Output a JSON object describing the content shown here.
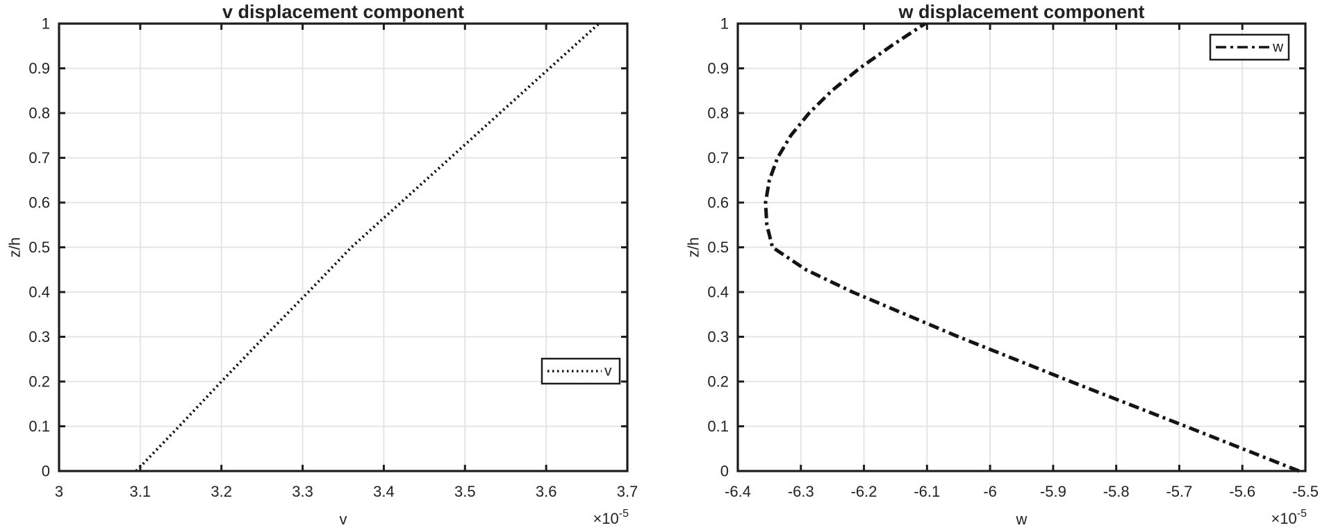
{
  "figure": {
    "background_color": "#ffffff",
    "axis_color": "#1d1d1d",
    "grid_color": "#e2e2e2",
    "curve_color": "#141414",
    "text_color": "#222222"
  },
  "chart_data": [
    {
      "type": "line",
      "title": "v displacement component",
      "xlabel": "v",
      "ylabel": "z/h",
      "exponent": {
        "base": "×10",
        "power": "-5"
      },
      "x_scale_factor": "1e-5",
      "grid": true,
      "legend": {
        "label": "v",
        "line_style": "dotted",
        "location": "inside-lower-right"
      },
      "line_style": "dotted",
      "xlim": [
        3.0,
        3.7
      ],
      "ylim": [
        0,
        1
      ],
      "xtick_labels": [
        "3",
        "3.1",
        "3.2",
        "3.3",
        "3.4",
        "3.5",
        "3.6",
        "3.7"
      ],
      "ytick_labels": [
        "0",
        "0.1",
        "0.2",
        "0.3",
        "0.4",
        "0.5",
        "0.6",
        "0.7",
        "0.8",
        "0.9",
        "1"
      ],
      "series": [
        {
          "name": "v",
          "z": [
            0,
            0.1,
            0.2,
            0.3,
            0.4,
            0.5,
            0.6,
            0.7,
            0.8,
            0.9,
            1.0
          ],
          "x": [
            3.095,
            3.148,
            3.2,
            3.253,
            3.307,
            3.36,
            3.421,
            3.482,
            3.543,
            3.604,
            3.665
          ]
        }
      ]
    },
    {
      "type": "line",
      "title": "w displacement component",
      "xlabel": "w",
      "ylabel": "z/h",
      "exponent": {
        "base": "×10",
        "power": "-5"
      },
      "x_scale_factor": "1e-5",
      "grid": true,
      "legend": {
        "label": "w",
        "line_style": "dash-dot",
        "location": "inside-upper-right"
      },
      "line_style": "dash-dot",
      "xlim": [
        -6.4,
        -5.5
      ],
      "ylim": [
        0,
        1
      ],
      "xtick_labels": [
        "-6.4",
        "-6.3",
        "-6.2",
        "-6.1",
        "-6",
        "-5.9",
        "-5.8",
        "-5.7",
        "-5.6",
        "-5.5"
      ],
      "ytick_labels": [
        "0",
        "0.1",
        "0.2",
        "0.3",
        "0.4",
        "0.5",
        "0.6",
        "0.7",
        "0.8",
        "0.9",
        "1"
      ],
      "series": [
        {
          "name": "w",
          "z": [
            0,
            0.1,
            0.2,
            0.3,
            0.4,
            0.45,
            0.5,
            0.55,
            0.6,
            0.65,
            0.7,
            0.75,
            0.8,
            0.85,
            0.9,
            0.95,
            1.0
          ],
          "x": [
            -5.51,
            -5.69,
            -5.872,
            -6.05,
            -6.218,
            -6.292,
            -6.345,
            -6.354,
            -6.356,
            -6.35,
            -6.337,
            -6.316,
            -6.287,
            -6.251,
            -6.207,
            -6.157,
            -6.103
          ]
        }
      ]
    }
  ]
}
